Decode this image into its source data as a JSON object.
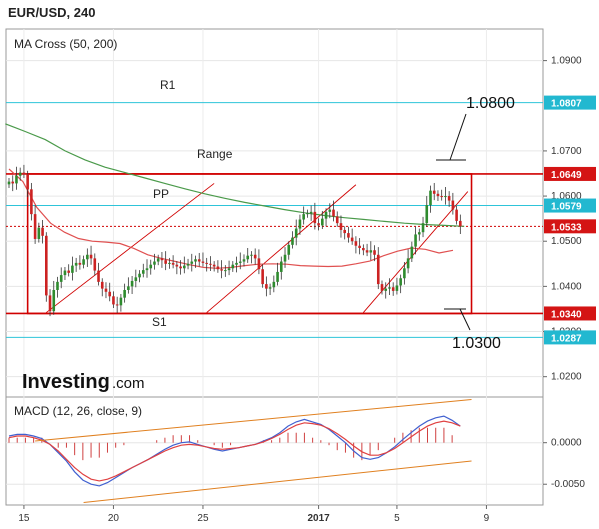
{
  "title": "EUR/USD, 240",
  "chart_data": [
    {
      "type": "candlestick",
      "indicator_label": "MA Cross (50, 200)",
      "y_ticks": [
        1.02,
        1.03,
        1.04,
        1.05,
        1.06,
        1.07,
        1.09
      ],
      "y_tick_labels": [
        "1.0200",
        "1.0300",
        "1.0400",
        "1.0500",
        "1.0600",
        "1.0700",
        "1.0900"
      ],
      "ylim": [
        1.0155,
        1.097
      ],
      "x_ticks": [
        {
          "label": "15",
          "index": 4
        },
        {
          "label": "20",
          "index": 28
        },
        {
          "label": "25",
          "index": 52
        },
        {
          "label": "2017",
          "index": 83
        },
        {
          "label": "5",
          "index": 104
        },
        {
          "label": "9",
          "index": 128
        }
      ],
      "closes": [
        1.0632,
        1.0628,
        1.0645,
        1.0652,
        1.0648,
        1.0615,
        1.056,
        1.0505,
        1.053,
        1.0512,
        1.038,
        1.0345,
        1.0392,
        1.041,
        1.0425,
        1.0435,
        1.043,
        1.0446,
        1.0452,
        1.0448,
        1.046,
        1.047,
        1.0462,
        1.0435,
        1.041,
        1.0395,
        1.0388,
        1.0378,
        1.036,
        1.0358,
        1.0375,
        1.0392,
        1.04,
        1.0412,
        1.042,
        1.0428,
        1.0436,
        1.044,
        1.0448,
        1.0455,
        1.0462,
        1.0458,
        1.045,
        1.0452,
        1.0448,
        1.0444,
        1.044,
        1.0446,
        1.045,
        1.0455,
        1.046,
        1.0455,
        1.0452,
        1.045,
        1.0448,
        1.0444,
        1.0438,
        1.0435,
        1.0436,
        1.044,
        1.0448,
        1.0452,
        1.0455,
        1.046,
        1.0468,
        1.047,
        1.0462,
        1.0438,
        1.0405,
        1.0395,
        1.0398,
        1.041,
        1.0432,
        1.0455,
        1.047,
        1.0492,
        1.0508,
        1.0528,
        1.0548,
        1.056,
        1.0562,
        1.0565,
        1.054,
        1.0535,
        1.055,
        1.0565,
        1.057,
        1.0555,
        1.054,
        1.0525,
        1.0518,
        1.0508,
        1.05,
        1.049,
        1.0485,
        1.048,
        1.0475,
        1.048,
        1.047,
        1.0405,
        1.039,
        1.0395,
        1.0398,
        1.039,
        1.0402,
        1.0418,
        1.044,
        1.0462,
        1.0488,
        1.0515,
        1.052,
        1.054,
        1.058,
        1.0612,
        1.0605,
        1.06,
        1.0598,
        1.06,
        1.059,
        1.057,
        1.0545,
        1.0533
      ],
      "ma50": [
        1.066,
        1.0632,
        1.0575,
        1.054,
        1.052,
        1.0506,
        1.05,
        1.0498,
        1.0495,
        1.0484,
        1.047,
        1.0462,
        1.0455,
        1.0448,
        1.0442,
        1.044,
        1.0442,
        1.0446,
        1.0449,
        1.045,
        1.0449,
        1.0446,
        1.0445,
        1.0444,
        1.0445,
        1.045,
        1.0456,
        1.0468,
        1.0478,
        1.0485,
        1.0482,
        1.0474,
        1.048
      ],
      "ma200": [
        1.076,
        1.0743,
        1.0725,
        1.07,
        1.068,
        1.0664,
        1.0652,
        1.064,
        1.0628,
        1.0616,
        1.0605,
        1.0595,
        1.0586,
        1.0578,
        1.057,
        1.0563,
        1.0557,
        1.0552,
        1.0548,
        1.0544,
        1.054,
        1.0537,
        1.0535,
        1.0533
      ],
      "levels": [
        {
          "name": "R1",
          "value": 1.0807,
          "tag": "1.0807"
        },
        {
          "name": "Range",
          "value": 1.0649,
          "tag": "1.0649"
        },
        {
          "name": "PP",
          "value": 1.0579,
          "tag": "1.0579"
        },
        {
          "name": "",
          "value": 1.0533,
          "tag": "1.0533"
        },
        {
          "name": "",
          "value": 1.034,
          "tag": "1.0340"
        },
        {
          "name": "S1",
          "value": 1.0287,
          "tag": "1.0287"
        }
      ],
      "annotations": [
        "1.0800",
        "1.0300"
      ],
      "legend": "none",
      "grid": true
    },
    {
      "type": "line",
      "indicator_label": "MACD (12, 26, close, 9)",
      "y_ticks": [
        0.0,
        -0.005
      ],
      "y_tick_labels": [
        "0.0000",
        "-0.0050"
      ],
      "ylim": [
        -0.0075,
        0.0055
      ],
      "macd": [
        0.0008,
        0.001,
        0.001,
        0.0008,
        0.0005,
        -0.0002,
        -0.0012,
        -0.0022,
        -0.0035,
        -0.0045,
        -0.005,
        -0.0052,
        -0.0048,
        -0.0042,
        -0.0036,
        -0.003,
        -0.0025,
        -0.002,
        -0.0014,
        -0.0008,
        -0.0003,
        0.0,
        0.0001,
        -0.0002,
        -0.0005,
        -0.0008,
        -0.001,
        -0.0008,
        -0.0006,
        -0.0004,
        -0.0002,
        0.0002,
        0.0006,
        0.0012,
        0.002,
        0.0025,
        0.0028,
        0.0025,
        0.0022,
        0.0016,
        0.0008,
        0.0,
        -0.001,
        -0.0018,
        -0.002,
        -0.0018,
        -0.0012,
        -0.0005,
        0.0004,
        0.0012,
        0.002,
        0.0026,
        0.003,
        0.0032,
        0.0027,
        0.002
      ],
      "signal": [
        0.0006,
        0.0008,
        0.0008,
        0.0006,
        0.0003,
        -0.0002,
        -0.001,
        -0.002,
        -0.003,
        -0.0038,
        -0.0044,
        -0.0046,
        -0.0044,
        -0.004,
        -0.0035,
        -0.003,
        -0.0025,
        -0.002,
        -0.0015,
        -0.001,
        -0.0006,
        -0.0003,
        -0.0002,
        -0.0003,
        -0.0005,
        -0.0007,
        -0.0008,
        -0.0007,
        -0.0006,
        -0.0004,
        -0.0002,
        0.0001,
        0.0005,
        0.001,
        0.0016,
        0.0021,
        0.0024,
        0.0023,
        0.0021,
        0.0017,
        0.0011,
        0.0004,
        -0.0004,
        -0.0011,
        -0.0015,
        -0.0015,
        -0.0012,
        -0.0007,
        0.0,
        0.0007,
        0.0014,
        0.002,
        0.0024,
        0.0026,
        0.0024,
        0.002
      ],
      "legend": "none",
      "grid": true
    }
  ],
  "colors": {
    "bull": "#2e8b2e",
    "bear": "#cc2222",
    "ma50": "#e05050",
    "ma200": "#4a9a4a",
    "level_cyan": "#2ec4d9",
    "range_red": "#d00000",
    "macd_line": "#4060d0",
    "signal_line": "#e04040",
    "channel": "#e08020",
    "hist": "#d04040",
    "tag_cyan": "#22b8d0",
    "tag_red": "#d41414"
  },
  "x_labels": [
    "15",
    "20",
    "25",
    "2017",
    "5",
    "9"
  ],
  "logo": {
    "word": "Investing",
    "suffix": ".com"
  }
}
